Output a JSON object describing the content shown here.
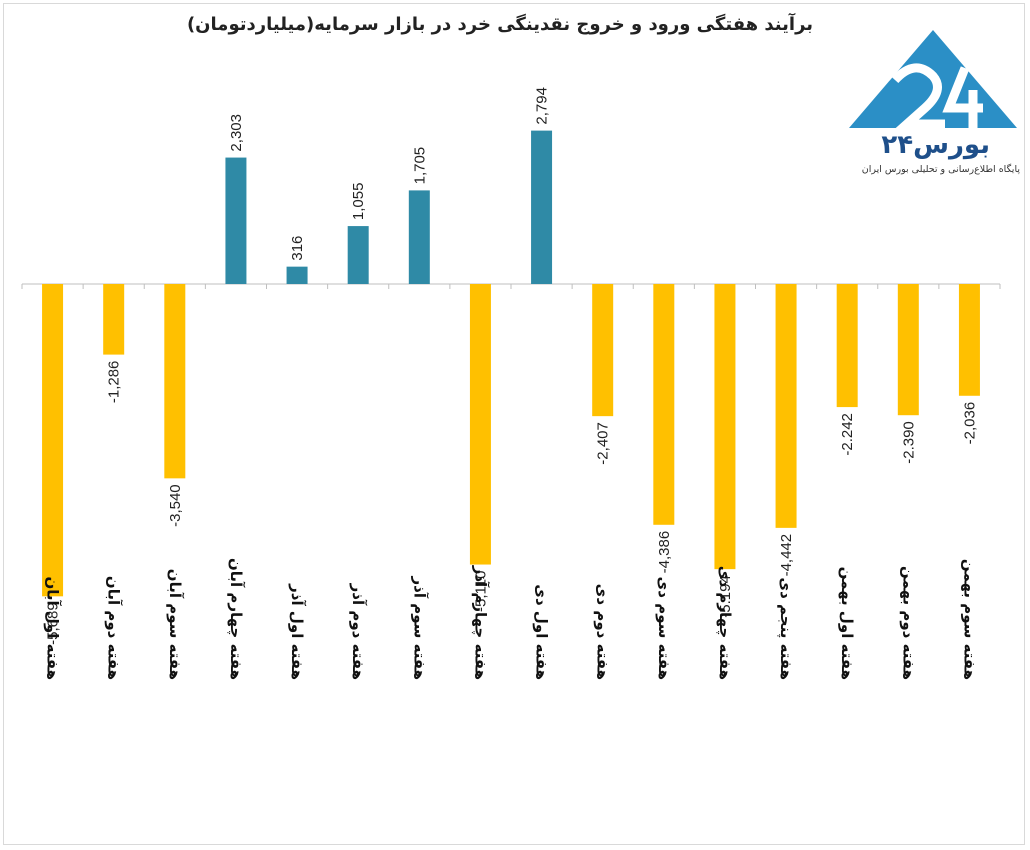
{
  "title": "برآیند هفتگی ورود و خروج نقدینگی خرد در بازار سرمایه(میلیاردتومان)",
  "logo": {
    "name": "بورس۲۴",
    "tagline": "پایگاه اطلاع‌رسانی و تحلیلی بورس ایران"
  },
  "colors": {
    "positive": "#2f8aa6",
    "negative": "#ffc000",
    "axis": "#bfbfbf",
    "logo": "#2b8fc6"
  },
  "chart_data": {
    "type": "bar",
    "title": "برآیند هفتگی ورود و خروج نقدینگی خرد در بازار سرمایه(میلیاردتومان)",
    "categories": [
      "هفته اول آبان",
      "هفته دوم آبان",
      "هفته سوم آبان",
      "هفته چهارم آبان",
      "هفته اول آذر",
      "هفته دوم آذر",
      "هفته سوم آذر",
      "هفته چهارم آذر",
      "هفته اول دی",
      "هفته دوم دی",
      "هفته سوم دی",
      "هفته چهارم دی",
      "هفته پنجم دی",
      "هفته اول بهمن",
      "هفته دوم بهمن",
      "هفته سوم بهمن"
    ],
    "values": [
      -5689,
      -1286,
      -3540,
      2303,
      316,
      1055,
      1705,
      -5110,
      2794,
      -2407,
      -4386,
      -5194,
      -4442,
      -2242,
      -2390,
      -2036
    ],
    "labels": [
      "-5,689",
      "-1,286",
      "-3,540",
      "2,303",
      "316",
      "1,055",
      "1,705",
      "-5,110",
      "2,794",
      "-2,407",
      "-4,386",
      "-5.194",
      "-4,442",
      "-2.242",
      "-2.390",
      "-2,036"
    ],
    "xlabel": "",
    "ylabel": "",
    "grid": false,
    "legend": "none"
  }
}
